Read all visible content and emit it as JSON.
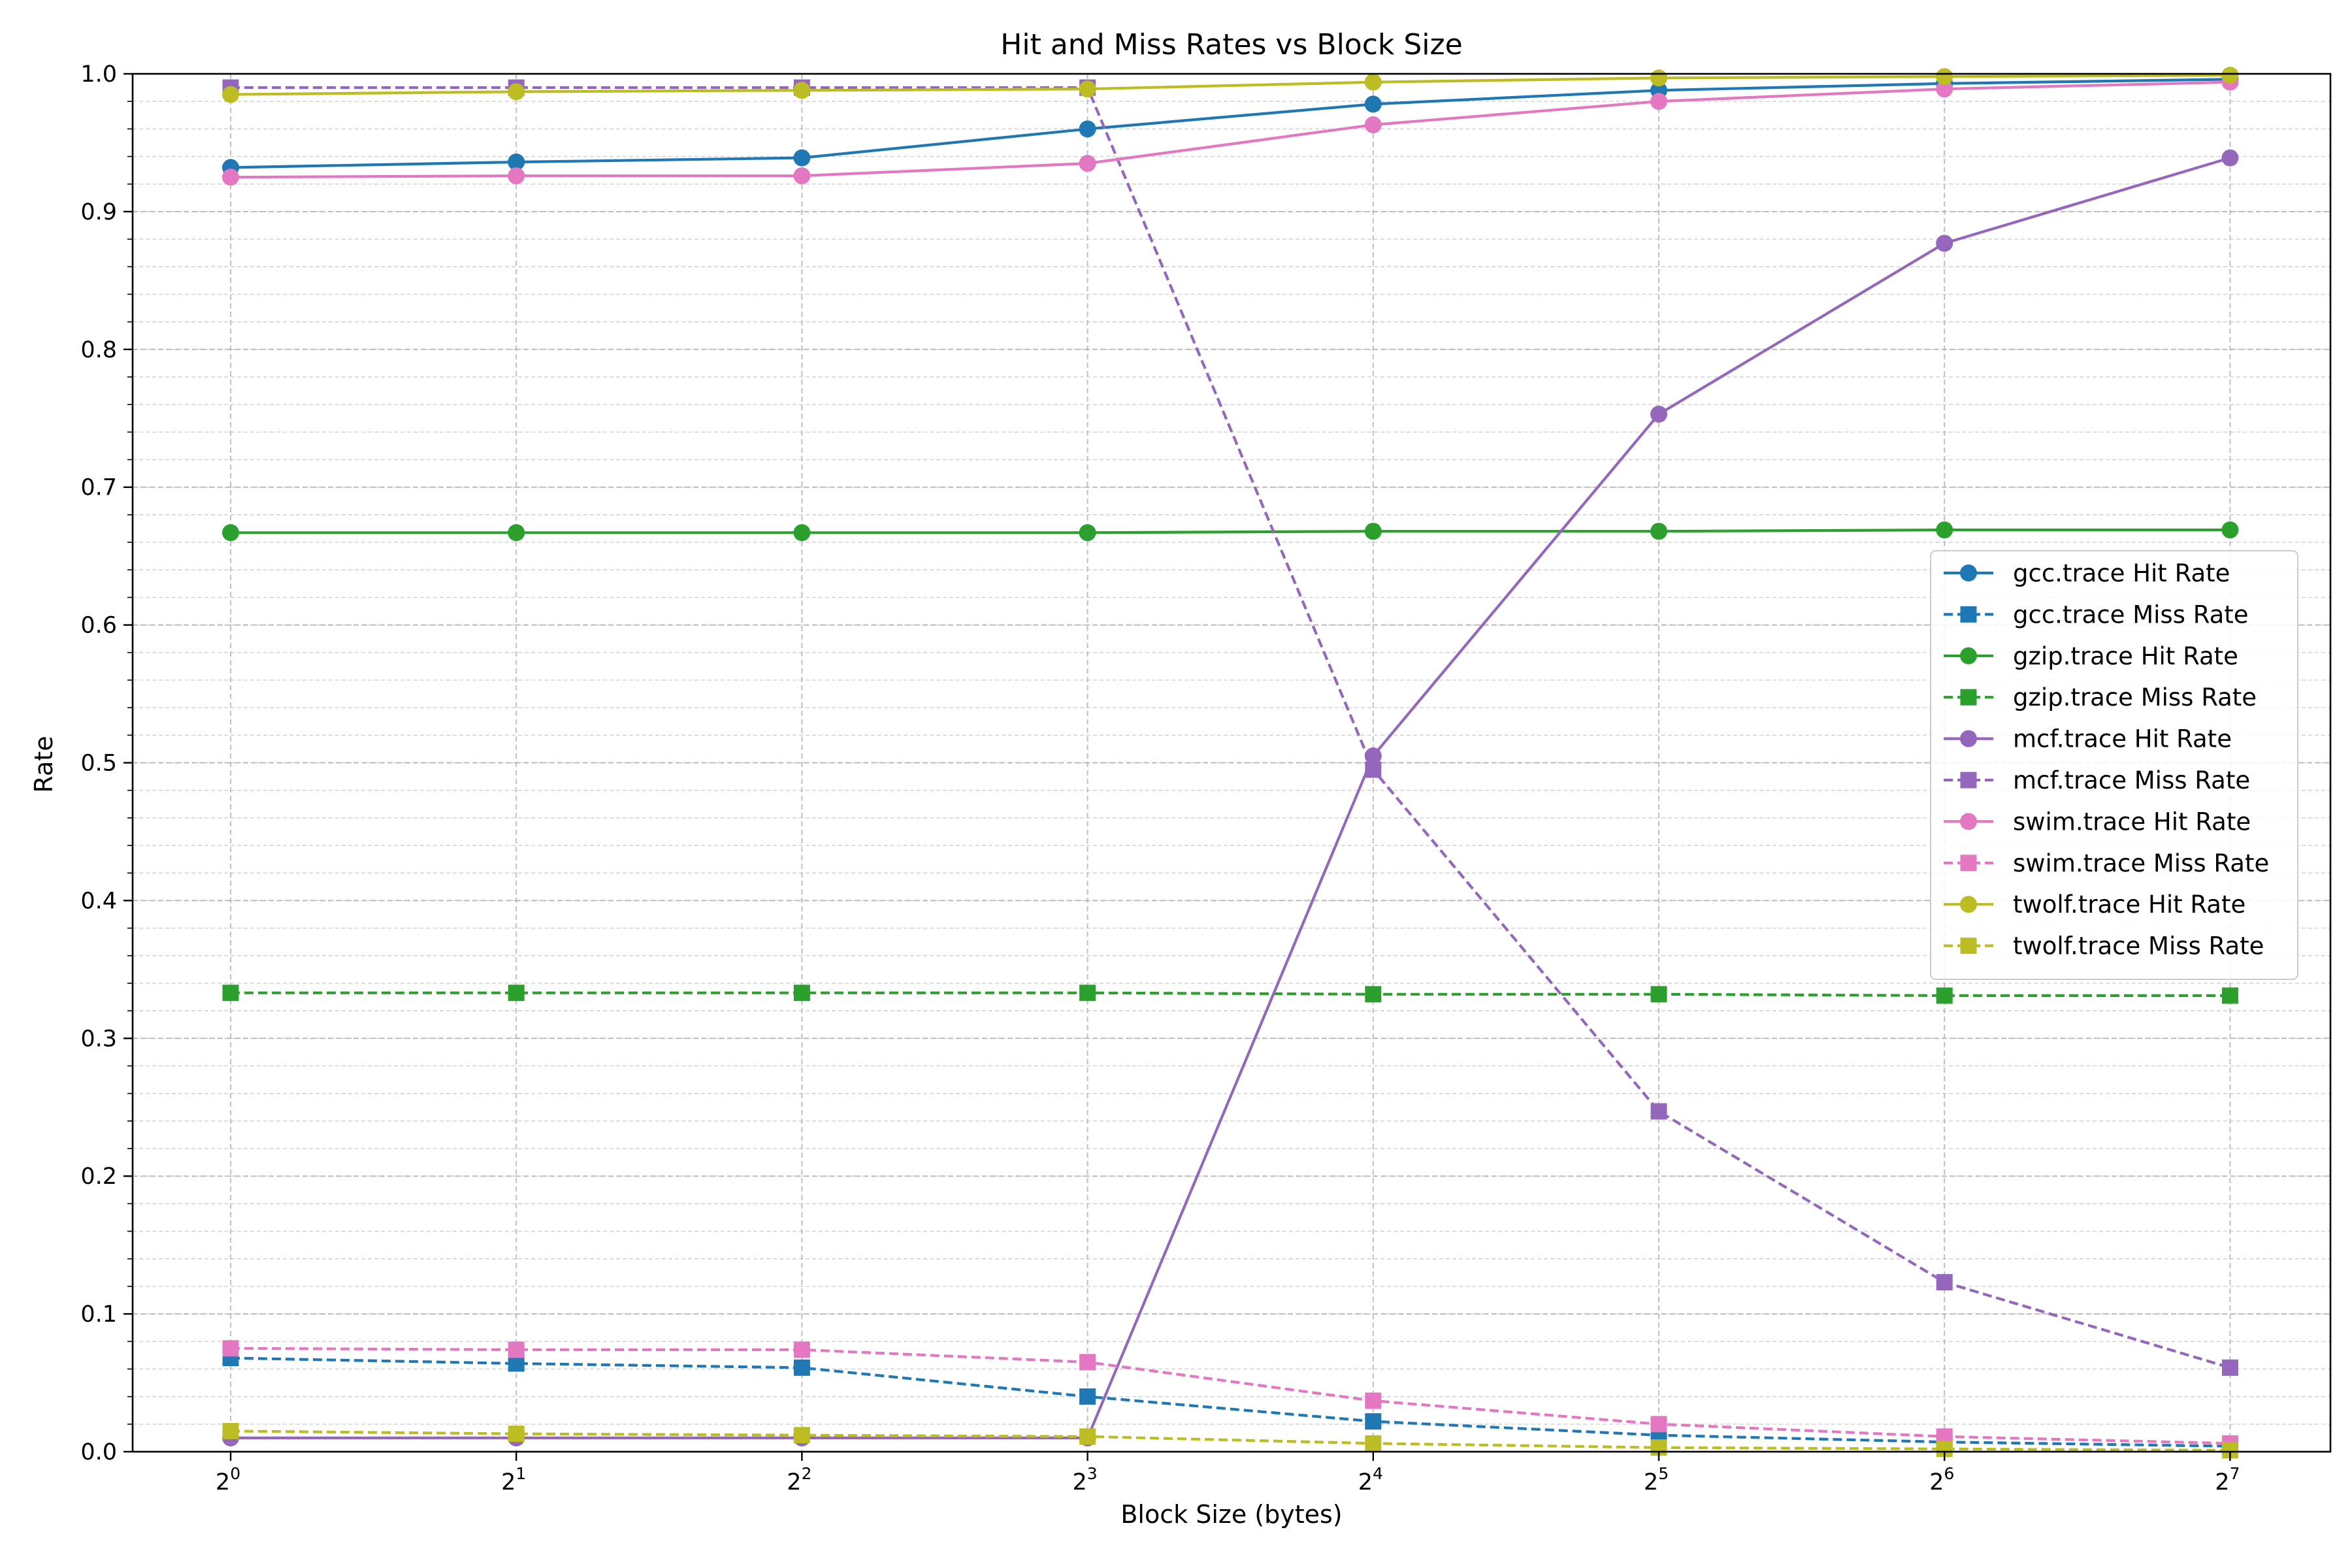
{
  "chart_data": {
    "type": "line",
    "title": "Hit and Miss Rates vs Block Size",
    "xlabel": "Block Size (bytes)",
    "ylabel": "Rate",
    "x_scale": "log2",
    "x": [
      1,
      2,
      4,
      8,
      16,
      32,
      64,
      128
    ],
    "x_tick_labels": [
      {
        "base": "2",
        "exp": "0"
      },
      {
        "base": "2",
        "exp": "1"
      },
      {
        "base": "2",
        "exp": "2"
      },
      {
        "base": "2",
        "exp": "3"
      },
      {
        "base": "2",
        "exp": "4"
      },
      {
        "base": "2",
        "exp": "5"
      },
      {
        "base": "2",
        "exp": "6"
      },
      {
        "base": "2",
        "exp": "7"
      }
    ],
    "ylim": [
      0,
      1
    ],
    "y_ticks": [
      "0.0",
      "0.1",
      "0.2",
      "0.3",
      "0.4",
      "0.5",
      "0.6",
      "0.7",
      "0.8",
      "0.9",
      "1.0"
    ],
    "y_minor_step": 0.02,
    "grid": true,
    "legend_position": "center-right",
    "series": [
      {
        "name": "gcc.trace Hit Rate",
        "color": "#1f77b4",
        "style": "solid",
        "marker": "circle",
        "values": [
          0.932,
          0.936,
          0.939,
          0.96,
          0.978,
          0.988,
          0.993,
          0.996
        ]
      },
      {
        "name": "gcc.trace Miss Rate",
        "color": "#1f77b4",
        "style": "dashed",
        "marker": "square",
        "values": [
          0.068,
          0.064,
          0.061,
          0.04,
          0.022,
          0.012,
          0.007,
          0.004
        ]
      },
      {
        "name": "gzip.trace Hit Rate",
        "color": "#2ca02c",
        "style": "solid",
        "marker": "circle",
        "values": [
          0.667,
          0.667,
          0.667,
          0.667,
          0.668,
          0.668,
          0.669,
          0.669
        ]
      },
      {
        "name": "gzip.trace Miss Rate",
        "color": "#2ca02c",
        "style": "dashed",
        "marker": "square",
        "values": [
          0.333,
          0.333,
          0.333,
          0.333,
          0.332,
          0.332,
          0.331,
          0.331
        ]
      },
      {
        "name": "mcf.trace Hit Rate",
        "color": "#9467bd",
        "style": "solid",
        "marker": "circle",
        "values": [
          0.01,
          0.01,
          0.01,
          0.01,
          0.505,
          0.753,
          0.877,
          0.939
        ]
      },
      {
        "name": "mcf.trace Miss Rate",
        "color": "#9467bd",
        "style": "dashed",
        "marker": "square",
        "values": [
          0.99,
          0.99,
          0.99,
          0.99,
          0.495,
          0.247,
          0.123,
          0.061
        ]
      },
      {
        "name": "swim.trace Hit Rate",
        "color": "#e377c2",
        "style": "solid",
        "marker": "circle",
        "values": [
          0.925,
          0.926,
          0.926,
          0.935,
          0.963,
          0.98,
          0.989,
          0.994
        ]
      },
      {
        "name": "swim.trace Miss Rate",
        "color": "#e377c2",
        "style": "dashed",
        "marker": "square",
        "values": [
          0.075,
          0.074,
          0.074,
          0.065,
          0.037,
          0.02,
          0.011,
          0.006
        ]
      },
      {
        "name": "twolf.trace Hit Rate",
        "color": "#bcbd22",
        "style": "solid",
        "marker": "circle",
        "values": [
          0.985,
          0.987,
          0.988,
          0.989,
          0.994,
          0.997,
          0.998,
          0.999
        ]
      },
      {
        "name": "twolf.trace Miss Rate",
        "color": "#bcbd22",
        "style": "dashed",
        "marker": "square",
        "values": [
          0.015,
          0.013,
          0.012,
          0.011,
          0.006,
          0.003,
          0.002,
          0.001
        ]
      }
    ]
  }
}
